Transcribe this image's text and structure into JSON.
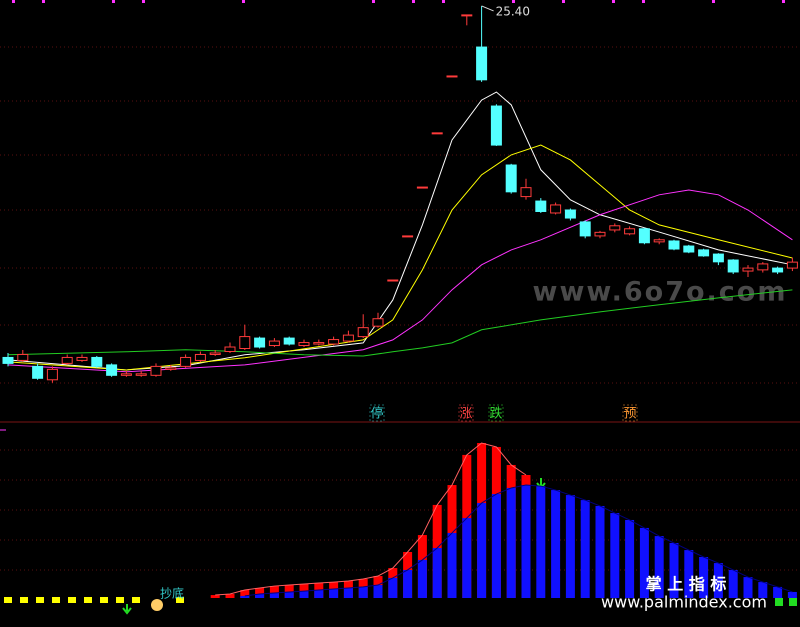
{
  "chart_data": [
    {
      "type": "candlestick",
      "ylim": [
        11.5,
        25.6
      ],
      "up_color": "#ff3b3b",
      "down_color": "#54ffff",
      "high_label": "25.40",
      "open": [
        13.6,
        13.5,
        13.3,
        12.85,
        13.4,
        13.5,
        13.6,
        13.35,
        13.0,
        13.0,
        13.0,
        13.2,
        13.3,
        13.5,
        13.7,
        13.8,
        13.9,
        14.25,
        14.0,
        14.25,
        14.0,
        14.05,
        14.05,
        14.15,
        14.3,
        14.65,
        16.2,
        17.68,
        19.32,
        21.14,
        23.05,
        25.1,
        24.02,
        22.04,
        20.06,
        19.0,
        18.85,
        18.45,
        18.55,
        18.15,
        17.68,
        17.88,
        17.75,
        17.92,
        17.48,
        17.51,
        17.34,
        17.21,
        17.07,
        16.87,
        16.5,
        16.54,
        16.6,
        16.6
      ],
      "high": [
        13.75,
        13.85,
        13.4,
        13.3,
        13.7,
        13.7,
        13.65,
        13.4,
        13.15,
        13.15,
        13.4,
        13.35,
        13.7,
        13.8,
        13.85,
        14.1,
        14.7,
        14.3,
        14.25,
        14.3,
        14.2,
        14.2,
        14.3,
        14.5,
        15.05,
        15.1,
        16.2,
        17.68,
        19.32,
        21.14,
        23.05,
        25.1,
        25.4,
        22.1,
        20.1,
        19.6,
        18.95,
        18.8,
        18.6,
        18.2,
        17.85,
        18.1,
        18.0,
        17.95,
        17.6,
        17.55,
        17.38,
        17.25,
        17.1,
        16.9,
        16.7,
        16.8,
        16.65,
        16.95
      ],
      "low": [
        13.3,
        13.45,
        12.85,
        12.75,
        13.35,
        13.45,
        13.25,
        12.95,
        12.95,
        12.95,
        12.95,
        13.15,
        13.25,
        13.45,
        13.65,
        13.75,
        13.85,
        13.9,
        13.95,
        14.0,
        13.95,
        14.0,
        14.0,
        14.1,
        14.25,
        14.6,
        16.2,
        17.68,
        19.32,
        21.14,
        23.05,
        24.75,
        22.85,
        20.7,
        19.1,
        18.9,
        18.45,
        18.4,
        18.2,
        17.6,
        17.6,
        17.8,
        17.7,
        17.4,
        17.4,
        17.2,
        17.1,
        16.98,
        16.7,
        16.4,
        16.3,
        16.45,
        16.4,
        16.5
      ],
      "close": [
        13.4,
        13.7,
        12.9,
        13.2,
        13.6,
        13.6,
        13.3,
        13.0,
        13.05,
        13.05,
        13.3,
        13.25,
        13.6,
        13.7,
        13.75,
        13.95,
        14.3,
        13.95,
        14.15,
        14.05,
        14.1,
        14.1,
        14.2,
        14.35,
        14.6,
        14.9,
        16.2,
        17.68,
        19.32,
        21.14,
        23.05,
        25.1,
        22.92,
        20.73,
        19.16,
        19.3,
        18.5,
        18.72,
        18.28,
        17.68,
        17.8,
        18.02,
        17.92,
        17.45,
        17.55,
        17.24,
        17.14,
        17.01,
        16.81,
        16.47,
        16.6,
        16.74,
        16.47,
        16.8
      ],
      "lines": [
        {
          "color": "#ffffff",
          "x": [
            0,
            4,
            8,
            12,
            16,
            20,
            24,
            26,
            28,
            30,
            32,
            33,
            34,
            36,
            38,
            40,
            44,
            48,
            53
          ],
          "values": [
            13.52,
            13.35,
            13.18,
            13.32,
            13.69,
            13.86,
            14.09,
            15.53,
            18.05,
            20.9,
            22.24,
            22.51,
            22.08,
            19.9,
            18.89,
            18.39,
            17.81,
            17.21,
            16.71
          ]
        },
        {
          "color": "#ffff00",
          "x": [
            0,
            8,
            16,
            24,
            26,
            28,
            30,
            32,
            34,
            36,
            38,
            40,
            42,
            44,
            48,
            53
          ],
          "values": [
            13.45,
            13.18,
            13.59,
            14.19,
            14.86,
            16.54,
            18.55,
            19.73,
            20.4,
            20.73,
            20.23,
            19.39,
            18.55,
            18.05,
            17.55,
            16.94
          ]
        },
        {
          "color": "#ff33ff",
          "x": [
            0,
            8,
            16,
            24,
            26,
            28,
            30,
            32,
            34,
            36,
            40,
            44,
            46,
            48,
            50,
            53
          ],
          "values": [
            13.35,
            13.12,
            13.35,
            13.86,
            14.19,
            14.86,
            15.87,
            16.71,
            17.21,
            17.55,
            18.39,
            19.06,
            19.22,
            19.06,
            18.55,
            17.55
          ]
        },
        {
          "color": "#22cc22",
          "x": [
            0,
            8,
            12,
            16,
            20,
            24,
            26,
            28,
            30,
            32,
            36,
            40,
            44,
            48,
            53
          ],
          "values": [
            13.69,
            13.79,
            13.86,
            13.79,
            13.69,
            13.65,
            13.79,
            13.92,
            14.09,
            14.53,
            14.86,
            15.13,
            15.37,
            15.6,
            15.87
          ]
        }
      ],
      "annotations": [
        {
          "text": "停",
          "color": "#33cccc"
        },
        {
          "text": "涨",
          "color": "#ff4444"
        },
        {
          "text": "跌",
          "color": "#33dd33"
        },
        {
          "text": "预",
          "color": "#ff9933"
        }
      ],
      "watermark": "www.6o7o.com"
    },
    {
      "type": "bar",
      "ylim": [
        0,
        100
      ],
      "series": [
        {
          "color": "#ff0000",
          "values": [
            null,
            null,
            null,
            null,
            null,
            null,
            null,
            null,
            null,
            null,
            null,
            null,
            null,
            null,
            1.7,
            2.3,
            4.6,
            5.8,
            6.9,
            7.5,
            8.1,
            8.7,
            9.2,
            9.8,
            11.0,
            12.7,
            17.3,
            26.6,
            36.4,
            53.8,
            65.3,
            82.7,
            89.6,
            87.3,
            76.9,
            71.1,
            null,
            null,
            null,
            null,
            null,
            null,
            null,
            null,
            null,
            null,
            null,
            null,
            null,
            null,
            null,
            null,
            null,
            null
          ]
        },
        {
          "color": "#1010ff",
          "values": [
            null,
            null,
            null,
            null,
            null,
            null,
            null,
            null,
            null,
            null,
            null,
            null,
            null,
            null,
            null,
            null,
            1.2,
            2.3,
            2.9,
            3.5,
            4.0,
            4.6,
            5.2,
            5.8,
            6.4,
            7.5,
            11.6,
            16.2,
            22.0,
            28.9,
            37.6,
            46.2,
            54.9,
            60.1,
            63.6,
            65.3,
            64.7,
            62.4,
            59.5,
            56.6,
            53.2,
            49.1,
            45.1,
            40.5,
            35.8,
            31.8,
            27.7,
            23.7,
            20.2,
            16.2,
            12.1,
            9.2,
            6.4,
            3.5
          ]
        }
      ],
      "annotation": "抄底",
      "brand": "掌 上 指 标",
      "url": "www.palmindex.com"
    }
  ]
}
